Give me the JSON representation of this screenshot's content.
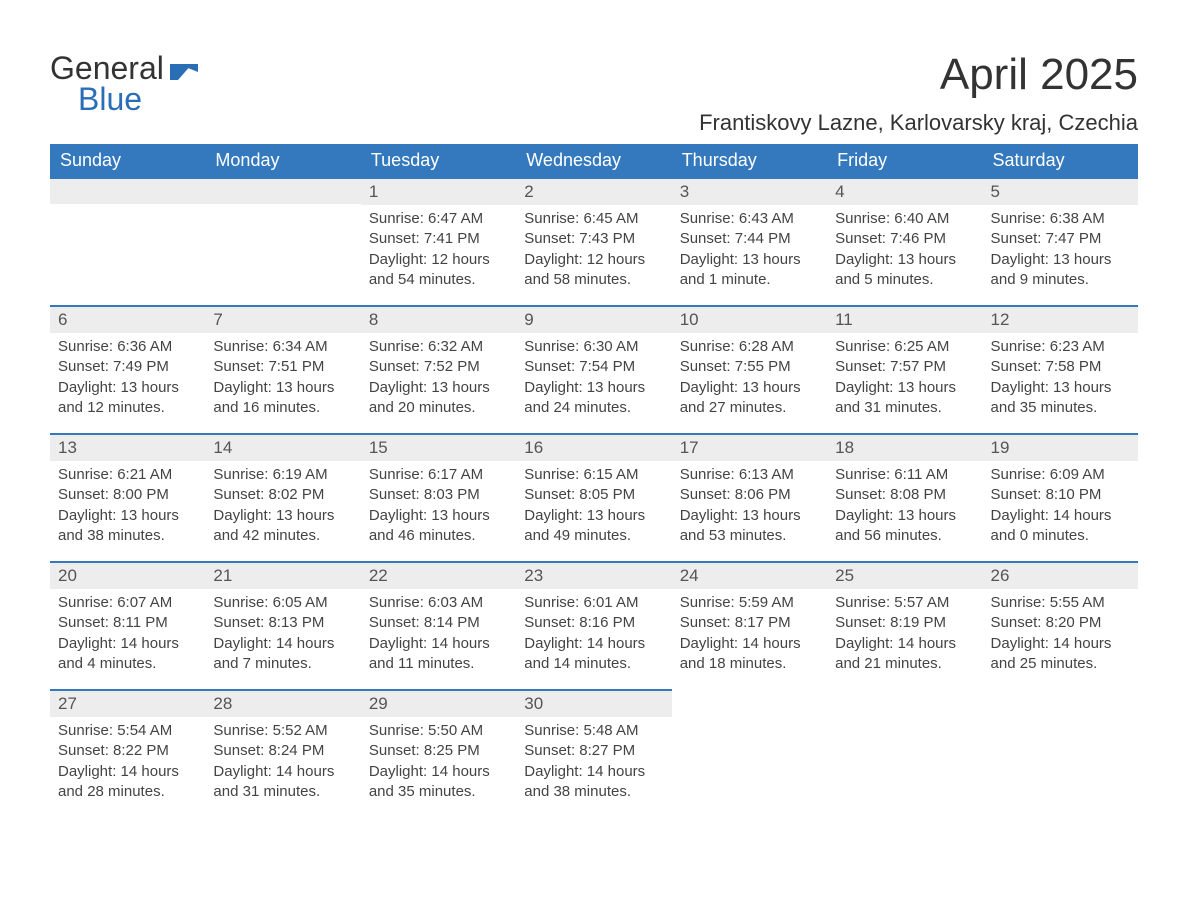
{
  "logo": {
    "text_general": "General",
    "text_blue": "Blue",
    "flag_color": "#2a6eb6"
  },
  "header": {
    "title": "April 2025",
    "location": "Frantiskovy Lazne, Karlovarsky kraj, Czechia"
  },
  "colors": {
    "header_bg": "#3478bd",
    "header_text": "#ffffff",
    "daynum_bg": "#ededed",
    "daynum_border": "#3478bd",
    "body_text": "#444444",
    "background": "#ffffff"
  },
  "daynames": [
    "Sunday",
    "Monday",
    "Tuesday",
    "Wednesday",
    "Thursday",
    "Friday",
    "Saturday"
  ],
  "weeks": [
    [
      null,
      null,
      {
        "n": "1",
        "sr": "Sunrise: 6:47 AM",
        "ss": "Sunset: 7:41 PM",
        "dl": "Daylight: 12 hours and 54 minutes."
      },
      {
        "n": "2",
        "sr": "Sunrise: 6:45 AM",
        "ss": "Sunset: 7:43 PM",
        "dl": "Daylight: 12 hours and 58 minutes."
      },
      {
        "n": "3",
        "sr": "Sunrise: 6:43 AM",
        "ss": "Sunset: 7:44 PM",
        "dl": "Daylight: 13 hours and 1 minute."
      },
      {
        "n": "4",
        "sr": "Sunrise: 6:40 AM",
        "ss": "Sunset: 7:46 PM",
        "dl": "Daylight: 13 hours and 5 minutes."
      },
      {
        "n": "5",
        "sr": "Sunrise: 6:38 AM",
        "ss": "Sunset: 7:47 PM",
        "dl": "Daylight: 13 hours and 9 minutes."
      }
    ],
    [
      {
        "n": "6",
        "sr": "Sunrise: 6:36 AM",
        "ss": "Sunset: 7:49 PM",
        "dl": "Daylight: 13 hours and 12 minutes."
      },
      {
        "n": "7",
        "sr": "Sunrise: 6:34 AM",
        "ss": "Sunset: 7:51 PM",
        "dl": "Daylight: 13 hours and 16 minutes."
      },
      {
        "n": "8",
        "sr": "Sunrise: 6:32 AM",
        "ss": "Sunset: 7:52 PM",
        "dl": "Daylight: 13 hours and 20 minutes."
      },
      {
        "n": "9",
        "sr": "Sunrise: 6:30 AM",
        "ss": "Sunset: 7:54 PM",
        "dl": "Daylight: 13 hours and 24 minutes."
      },
      {
        "n": "10",
        "sr": "Sunrise: 6:28 AM",
        "ss": "Sunset: 7:55 PM",
        "dl": "Daylight: 13 hours and 27 minutes."
      },
      {
        "n": "11",
        "sr": "Sunrise: 6:25 AM",
        "ss": "Sunset: 7:57 PM",
        "dl": "Daylight: 13 hours and 31 minutes."
      },
      {
        "n": "12",
        "sr": "Sunrise: 6:23 AM",
        "ss": "Sunset: 7:58 PM",
        "dl": "Daylight: 13 hours and 35 minutes."
      }
    ],
    [
      {
        "n": "13",
        "sr": "Sunrise: 6:21 AM",
        "ss": "Sunset: 8:00 PM",
        "dl": "Daylight: 13 hours and 38 minutes."
      },
      {
        "n": "14",
        "sr": "Sunrise: 6:19 AM",
        "ss": "Sunset: 8:02 PM",
        "dl": "Daylight: 13 hours and 42 minutes."
      },
      {
        "n": "15",
        "sr": "Sunrise: 6:17 AM",
        "ss": "Sunset: 8:03 PM",
        "dl": "Daylight: 13 hours and 46 minutes."
      },
      {
        "n": "16",
        "sr": "Sunrise: 6:15 AM",
        "ss": "Sunset: 8:05 PM",
        "dl": "Daylight: 13 hours and 49 minutes."
      },
      {
        "n": "17",
        "sr": "Sunrise: 6:13 AM",
        "ss": "Sunset: 8:06 PM",
        "dl": "Daylight: 13 hours and 53 minutes."
      },
      {
        "n": "18",
        "sr": "Sunrise: 6:11 AM",
        "ss": "Sunset: 8:08 PM",
        "dl": "Daylight: 13 hours and 56 minutes."
      },
      {
        "n": "19",
        "sr": "Sunrise: 6:09 AM",
        "ss": "Sunset: 8:10 PM",
        "dl": "Daylight: 14 hours and 0 minutes."
      }
    ],
    [
      {
        "n": "20",
        "sr": "Sunrise: 6:07 AM",
        "ss": "Sunset: 8:11 PM",
        "dl": "Daylight: 14 hours and 4 minutes."
      },
      {
        "n": "21",
        "sr": "Sunrise: 6:05 AM",
        "ss": "Sunset: 8:13 PM",
        "dl": "Daylight: 14 hours and 7 minutes."
      },
      {
        "n": "22",
        "sr": "Sunrise: 6:03 AM",
        "ss": "Sunset: 8:14 PM",
        "dl": "Daylight: 14 hours and 11 minutes."
      },
      {
        "n": "23",
        "sr": "Sunrise: 6:01 AM",
        "ss": "Sunset: 8:16 PM",
        "dl": "Daylight: 14 hours and 14 minutes."
      },
      {
        "n": "24",
        "sr": "Sunrise: 5:59 AM",
        "ss": "Sunset: 8:17 PM",
        "dl": "Daylight: 14 hours and 18 minutes."
      },
      {
        "n": "25",
        "sr": "Sunrise: 5:57 AM",
        "ss": "Sunset: 8:19 PM",
        "dl": "Daylight: 14 hours and 21 minutes."
      },
      {
        "n": "26",
        "sr": "Sunrise: 5:55 AM",
        "ss": "Sunset: 8:20 PM",
        "dl": "Daylight: 14 hours and 25 minutes."
      }
    ],
    [
      {
        "n": "27",
        "sr": "Sunrise: 5:54 AM",
        "ss": "Sunset: 8:22 PM",
        "dl": "Daylight: 14 hours and 28 minutes."
      },
      {
        "n": "28",
        "sr": "Sunrise: 5:52 AM",
        "ss": "Sunset: 8:24 PM",
        "dl": "Daylight: 14 hours and 31 minutes."
      },
      {
        "n": "29",
        "sr": "Sunrise: 5:50 AM",
        "ss": "Sunset: 8:25 PM",
        "dl": "Daylight: 14 hours and 35 minutes."
      },
      {
        "n": "30",
        "sr": "Sunrise: 5:48 AM",
        "ss": "Sunset: 8:27 PM",
        "dl": "Daylight: 14 hours and 38 minutes."
      },
      null,
      null,
      null
    ]
  ]
}
